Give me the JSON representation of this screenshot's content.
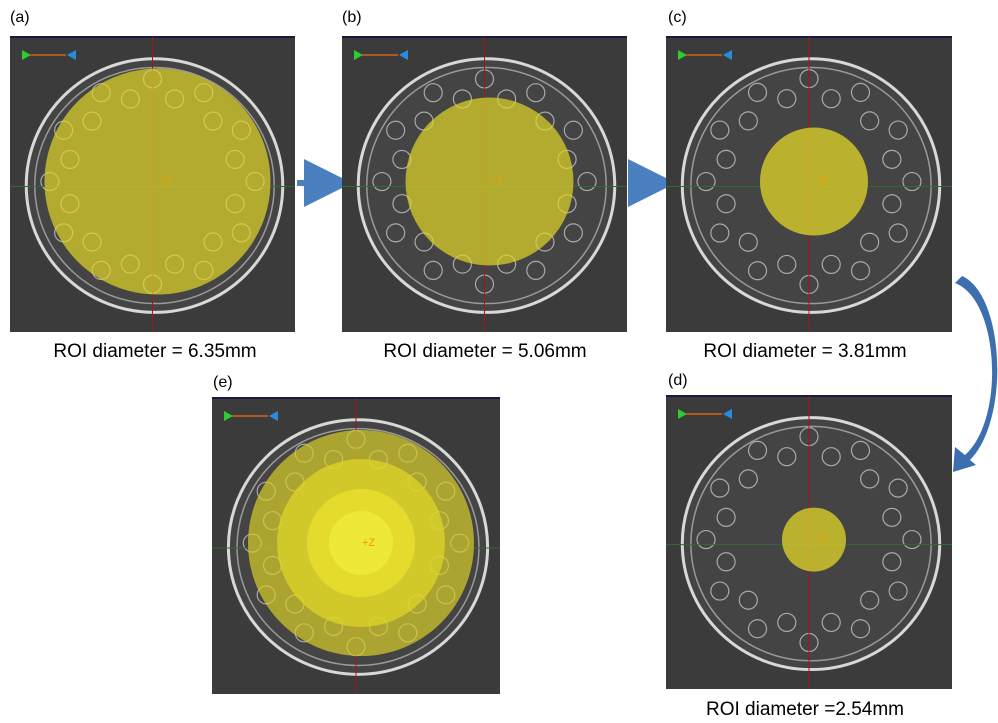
{
  "axis_label": "+Z",
  "panels": [
    {
      "label": "(a)",
      "caption": "ROI diameter  = 6.35mm"
    },
    {
      "label": "(b)",
      "caption": "ROI diameter  = 5.06mm"
    },
    {
      "label": "(c)",
      "caption": "ROI diameter  = 3.81mm"
    },
    {
      "label": "(d)",
      "caption": "ROI diameter  =2.54mm"
    },
    {
      "label": "(e)"
    }
  ]
}
